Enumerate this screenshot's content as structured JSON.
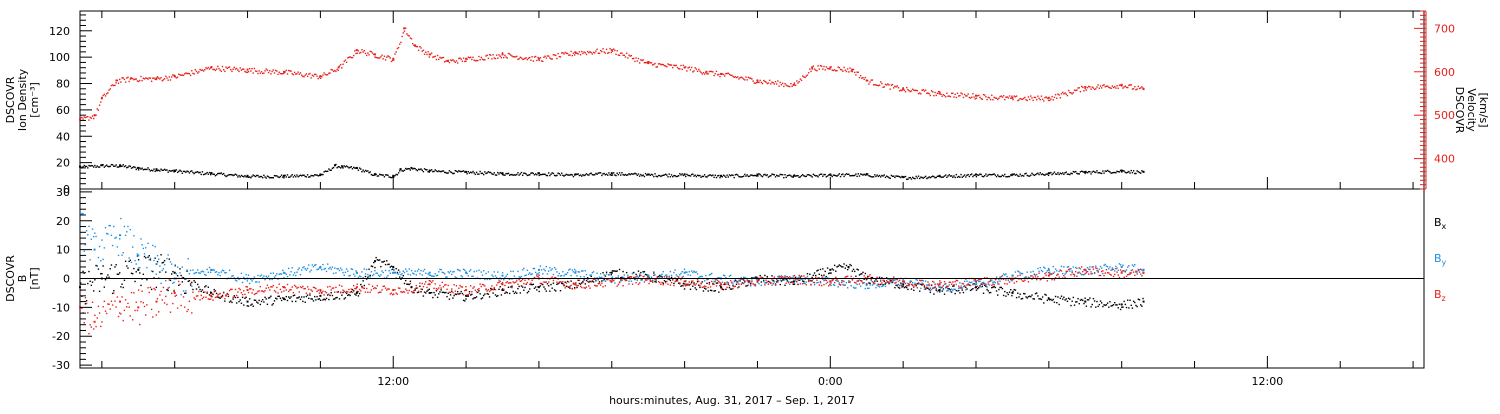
{
  "colors": {
    "black": "#000000",
    "red": "#e8211c",
    "blue": "#1e90e0"
  },
  "x_axis": {
    "label": "hours:minutes, Aug. 31, 2017 – Sep.  1, 2017",
    "range_hours": [
      3.4,
      40.3
    ],
    "tick_labels": [
      {
        "hour": 12,
        "text": "12:00"
      },
      {
        "hour": 24,
        "text": "0:00"
      },
      {
        "hour": 36,
        "text": "12:00"
      }
    ],
    "minor_tick_step_hours": 2
  },
  "chart_data": [
    {
      "type": "scatter",
      "panel": "top",
      "left_axis": {
        "label_lines": [
          "DSCOVR",
          "Ion Density",
          "[cm⁻³]"
        ],
        "range": [
          0,
          135
        ],
        "ticks": [
          0,
          20,
          40,
          60,
          80,
          100,
          120
        ],
        "color": "#000000"
      },
      "right_axis": {
        "label_lines": [
          "DSCOVR",
          "Velocity",
          "[km/s]"
        ],
        "range": [
          330,
          740
        ],
        "ticks": [
          400,
          500,
          600,
          700
        ],
        "color": "#e8211c"
      },
      "series": [
        {
          "axis": "left",
          "color": "#000000",
          "x": [
            3.4,
            4.0,
            4.5,
            5.0,
            5.5,
            6.0,
            7.0,
            8.0,
            9.0,
            10.0,
            10.4,
            10.6,
            11.0,
            11.5,
            12.0,
            12.2,
            12.5,
            13.0,
            14.0,
            15.0,
            16.0,
            17.0,
            18.0,
            19.0,
            20.0,
            21.0,
            22.0,
            23.0,
            24.0,
            25.0,
            26.0,
            27.0,
            28.0,
            29.0,
            30.0,
            31.0,
            32.0,
            32.6
          ],
          "y": [
            17,
            18,
            18,
            16,
            15,
            14,
            12,
            10,
            10,
            11,
            18,
            17,
            16,
            11,
            10,
            15,
            16,
            14,
            13,
            12,
            12,
            11,
            12,
            11,
            11,
            10,
            11,
            10,
            11,
            11,
            9,
            10,
            11,
            11,
            12,
            13,
            14,
            13
          ]
        },
        {
          "axis": "right",
          "color": "#e8211c",
          "x": [
            3.4,
            3.8,
            4.0,
            4.4,
            4.8,
            5.5,
            6.0,
            7.0,
            8.0,
            9.0,
            10.0,
            10.5,
            11.0,
            11.5,
            12.0,
            12.3,
            12.6,
            13.0,
            13.5,
            14.0,
            15.0,
            16.0,
            17.0,
            18.0,
            19.0,
            20.0,
            20.6,
            21.0,
            22.0,
            23.0,
            23.5,
            24.0,
            24.6,
            25.0,
            26.0,
            27.0,
            28.0,
            29.0,
            30.0,
            31.0,
            32.0,
            32.6
          ],
          "y": [
            490,
            500,
            540,
            580,
            585,
            585,
            590,
            610,
            605,
            600,
            590,
            610,
            650,
            640,
            630,
            700,
            660,
            640,
            625,
            630,
            640,
            630,
            645,
            650,
            620,
            610,
            600,
            595,
            580,
            570,
            610,
            610,
            605,
            580,
            560,
            550,
            545,
            540,
            540,
            565,
            570,
            560
          ]
        }
      ]
    },
    {
      "type": "scatter",
      "panel": "bottom",
      "left_axis": {
        "label_lines": [
          "DSCOVR",
          "B",
          "[nT]"
        ],
        "range": [
          -31,
          31
        ],
        "ticks": [
          -30,
          -20,
          -10,
          0,
          10,
          20,
          30
        ],
        "color": "#000000"
      },
      "zero_line": true,
      "legend": {
        "placement": "right",
        "entries": [
          {
            "name": "B",
            "sub": "x",
            "color": "#000000"
          },
          {
            "name": "B",
            "sub": "y",
            "color": "#1e90e0"
          },
          {
            "name": "B",
            "sub": "z",
            "color": "#e8211c"
          }
        ]
      },
      "series": [
        {
          "name": "Bx",
          "color": "#000000",
          "x": [
            3.4,
            4.0,
            5.0,
            6.0,
            7.0,
            8.0,
            9.0,
            10.0,
            11.0,
            11.5,
            12.0,
            12.5,
            13.0,
            14.0,
            15.0,
            16.0,
            17.0,
            18.0,
            19.0,
            20.0,
            21.0,
            22.0,
            23.0,
            24.0,
            24.5,
            25.0,
            26.0,
            27.0,
            28.0,
            29.0,
            30.0,
            31.0,
            32.0,
            32.6
          ],
          "y": [
            -3,
            0,
            3,
            2,
            -5,
            -8,
            -7,
            -6,
            -5,
            6,
            4,
            -3,
            -5,
            -6,
            -4,
            -3,
            -2,
            2,
            1,
            -2,
            -3,
            0,
            -1,
            3,
            4,
            0,
            -2,
            -4,
            -3,
            -5,
            -7,
            -8,
            -9,
            -8
          ]
        },
        {
          "name": "By",
          "color": "#1e90e0",
          "x": [
            3.4,
            3.8,
            4.5,
            5.0,
            5.5,
            6.0,
            7.0,
            8.0,
            9.0,
            10.0,
            11.0,
            12.0,
            13.0,
            14.0,
            15.0,
            16.0,
            17.0,
            18.0,
            19.0,
            20.0,
            21.0,
            22.0,
            23.0,
            24.0,
            25.0,
            26.0,
            27.0,
            28.0,
            29.0,
            30.0,
            31.0,
            32.0,
            32.6
          ],
          "y": [
            18,
            10,
            15,
            8,
            5,
            0,
            3,
            0,
            2,
            4,
            2,
            2,
            2,
            2,
            1,
            3,
            2,
            0,
            1,
            2,
            0,
            -1,
            0,
            -1,
            -2,
            -1,
            -3,
            -2,
            1,
            3,
            3,
            4,
            3
          ]
        },
        {
          "name": "Bz",
          "color": "#e8211c",
          "x": [
            3.4,
            3.8,
            4.5,
            5.0,
            5.5,
            6.0,
            7.0,
            8.0,
            9.0,
            10.0,
            11.0,
            12.0,
            13.0,
            14.0,
            15.0,
            16.0,
            17.0,
            18.0,
            19.0,
            20.0,
            21.0,
            22.0,
            23.0,
            24.0,
            25.0,
            26.0,
            27.0,
            28.0,
            29.0,
            30.0,
            31.0,
            32.0,
            32.6
          ],
          "y": [
            -10,
            -15,
            -8,
            -10,
            -8,
            -5,
            -6,
            -4,
            -3,
            -4,
            -3,
            -4,
            -2,
            -4,
            -2,
            0,
            -2,
            -1,
            0,
            -1,
            -2,
            -1,
            0,
            -1,
            0,
            -1,
            -2,
            -1,
            0,
            1,
            3,
            2,
            2
          ]
        }
      ]
    }
  ]
}
